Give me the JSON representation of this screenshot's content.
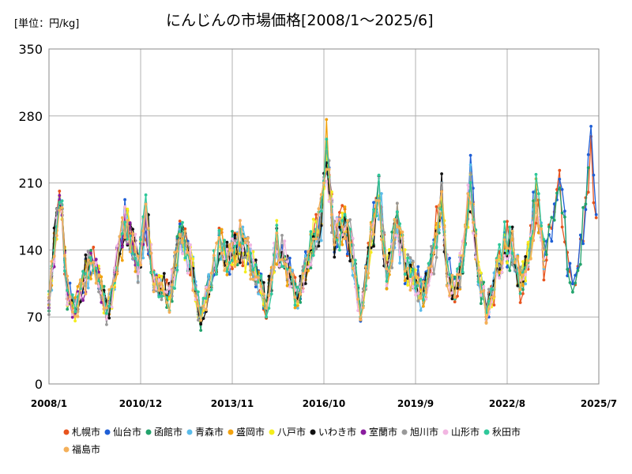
{
  "chart_data": {
    "type": "line",
    "title": "にんじんの市場価格[2008/1～2025/6]",
    "unit_label": "[単位：円/kg]",
    "ylim": [
      0,
      350
    ],
    "yticks": [
      "0",
      "70",
      "140",
      "210",
      "280",
      "350"
    ],
    "xticks": [
      "2008/1",
      "2010/12",
      "2013/11",
      "2016/10",
      "2019/9",
      "2022/8",
      "2025/7"
    ],
    "x_start": "2008-01",
    "x_end": "2025-07",
    "grid": true,
    "legend_position": "bottom",
    "series": [
      {
        "name": "札幌市",
        "color": "#e8541e",
        "start": "2008-01",
        "end": "2025-06",
        "seed": 1
      },
      {
        "name": "仙台市",
        "color": "#1f5fd6",
        "start": "2008-01",
        "end": "2025-06",
        "seed": 2
      },
      {
        "name": "函館市",
        "color": "#22a36c",
        "start": "2008-01",
        "end": "2025-03",
        "seed": 3
      },
      {
        "name": "青森市",
        "color": "#5bbcea",
        "start": "2008-01",
        "end": "2023-10",
        "seed": 4
      },
      {
        "name": "盛岡市",
        "color": "#f2a20e",
        "start": "2008-01",
        "end": "2023-10",
        "seed": 5
      },
      {
        "name": "八戸市",
        "color": "#f4ee1c",
        "start": "2008-01",
        "end": "2023-10",
        "seed": 6
      },
      {
        "name": "いわき市",
        "color": "#111111",
        "start": "2008-01",
        "end": "2023-03",
        "seed": 7
      },
      {
        "name": "室蘭市",
        "color": "#8a1c9e",
        "start": "2008-01",
        "end": "2011-06",
        "seed": 8
      },
      {
        "name": "旭川市",
        "color": "#999999",
        "start": "2008-01",
        "end": "2023-10",
        "seed": 9
      },
      {
        "name": "山形市",
        "color": "#f2b6e2",
        "start": "2008-01",
        "end": "2023-10",
        "seed": 10
      },
      {
        "name": "秋田市",
        "color": "#2fc89a",
        "start": "2008-01",
        "end": "2023-10",
        "seed": 11
      },
      {
        "name": "福島市",
        "color": "#f4b05a",
        "start": "2008-01",
        "end": "2023-10",
        "seed": 12
      }
    ],
    "base_profile": {
      "description_points": [
        [
          "2008-01",
          85
        ],
        [
          "2008-05",
          200
        ],
        [
          "2008-08",
          95
        ],
        [
          "2008-11",
          80
        ],
        [
          "2009-05",
          130
        ],
        [
          "2009-08",
          110
        ],
        [
          "2009-11",
          75
        ],
        [
          "2010-01",
          95
        ],
        [
          "2010-06",
          170
        ],
        [
          "2010-09",
          150
        ],
        [
          "2010-11",
          120
        ],
        [
          "2011-02",
          175
        ],
        [
          "2011-05",
          110
        ],
        [
          "2011-08",
          100
        ],
        [
          "2011-11",
          90
        ],
        [
          "2012-03",
          155
        ],
        [
          "2012-07",
          130
        ],
        [
          "2012-11",
          70
        ],
        [
          "2013-02",
          100
        ],
        [
          "2013-06",
          150
        ],
        [
          "2013-09",
          130
        ],
        [
          "2014-02",
          150
        ],
        [
          "2014-06",
          130
        ],
        [
          "2014-10",
          100
        ],
        [
          "2014-12",
          75
        ],
        [
          "2015-04",
          150
        ],
        [
          "2015-08",
          120
        ],
        [
          "2015-12",
          90
        ],
        [
          "2016-04",
          130
        ],
        [
          "2016-09",
          175
        ],
        [
          "2016-11",
          240
        ],
        [
          "2017-02",
          150
        ],
        [
          "2017-06",
          170
        ],
        [
          "2017-09",
          135
        ],
        [
          "2017-12",
          70
        ],
        [
          "2018-04",
          150
        ],
        [
          "2018-07",
          200
        ],
        [
          "2018-10",
          110
        ],
        [
          "2019-02",
          170
        ],
        [
          "2019-05",
          120
        ],
        [
          "2019-09",
          110
        ],
        [
          "2019-12",
          90
        ],
        [
          "2020-04",
          140
        ],
        [
          "2020-07",
          195
        ],
        [
          "2020-09",
          120
        ],
        [
          "2020-12",
          95
        ],
        [
          "2021-03",
          130
        ],
        [
          "2021-06",
          210
        ],
        [
          "2021-09",
          110
        ],
        [
          "2021-12",
          80
        ],
        [
          "2022-03",
          100
        ],
        [
          "2022-07",
          150
        ],
        [
          "2022-10",
          140
        ],
        [
          "2023-01",
          105
        ],
        [
          "2023-04",
          130
        ],
        [
          "2023-07",
          195
        ],
        [
          "2023-10",
          130
        ],
        [
          "2024-01",
          160
        ],
        [
          "2024-04",
          220
        ],
        [
          "2024-07",
          130
        ],
        [
          "2024-10",
          100
        ],
        [
          "2025-02",
          190
        ],
        [
          "2025-04",
          250
        ],
        [
          "2025-06",
          180
        ]
      ]
    }
  }
}
